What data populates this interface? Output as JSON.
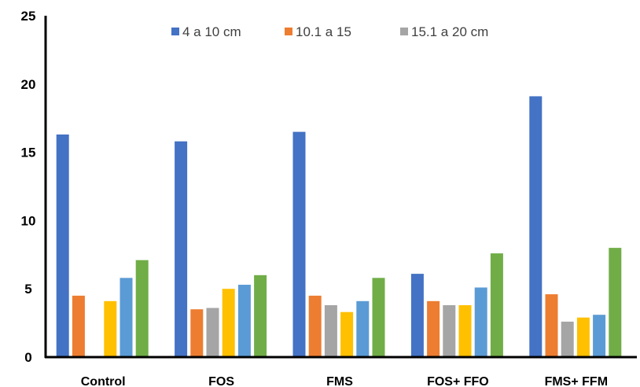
{
  "chart_data": {
    "type": "bar",
    "categories": [
      "Control",
      "FOS",
      "FMS",
      "FOS+ FFO",
      "FMS+ FFM"
    ],
    "series": [
      {
        "name": "4 a 10 cm",
        "color": "#4472C4",
        "values": [
          16.3,
          15.8,
          16.5,
          6.1,
          19.1
        ]
      },
      {
        "name": "10.1 a 15",
        "color": "#ED7D31",
        "values": [
          4.5,
          3.5,
          4.5,
          4.1,
          4.6
        ]
      },
      {
        "name": "15.1 a 20 cm",
        "color": "#A5A5A5",
        "values": [
          0,
          3.6,
          3.8,
          3.8,
          2.6
        ]
      },
      {
        "color": "#FFC000",
        "values": [
          4.1,
          5.0,
          3.3,
          3.8,
          2.9
        ]
      },
      {
        "color": "#5B9BD5",
        "values": [
          5.8,
          5.3,
          4.1,
          5.1,
          3.1
        ]
      },
      {
        "color": "#70AD47",
        "values": [
          7.1,
          6.0,
          5.8,
          7.6,
          8.0
        ]
      }
    ],
    "yticks": [
      0,
      5,
      10,
      15,
      20,
      25
    ],
    "ylim": [
      0,
      25
    ],
    "title": "",
    "xlabel": "",
    "ylabel": "",
    "grid": false,
    "legend_position": "top"
  }
}
